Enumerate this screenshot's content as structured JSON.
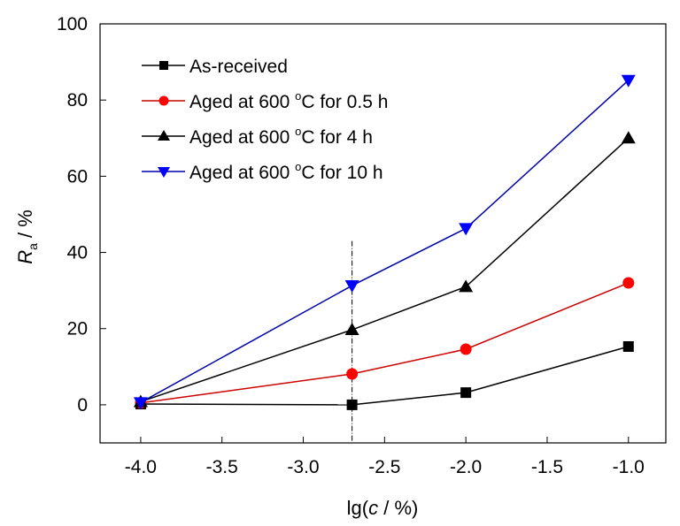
{
  "chart_data": {
    "type": "line",
    "title": "",
    "xlabel": {
      "prefix": "lg(",
      "italic": "c",
      "suffix": " / %)"
    },
    "ylabel": {
      "italic": "R",
      "subscript": "a",
      "suffix": " / %"
    },
    "xlim": [
      -4.25,
      -0.77
    ],
    "ylim": [
      -10,
      100
    ],
    "x_ticks": [
      -4.0,
      -3.5,
      -3.0,
      -2.5,
      -2.0,
      -1.5,
      -1.0
    ],
    "x_tick_labels": [
      "-4.0",
      "-3.5",
      "-3.0",
      "-2.5",
      "-2.0",
      "-1.5",
      "-1.0"
    ],
    "y_ticks": [
      0,
      20,
      40,
      60,
      80,
      100
    ],
    "y_tick_labels": [
      "0",
      "20",
      "40",
      "60",
      "80",
      "100"
    ],
    "grid": false,
    "legend_position": "top-left",
    "reference_line": {
      "x": -2.7,
      "style": "dash-dot",
      "y_range": [
        -10,
        43
      ]
    },
    "x": [
      -4.0,
      -2.7,
      -2.0,
      -1.0
    ],
    "series": [
      {
        "name": "As-received",
        "legend_parts": [
          "As-received"
        ],
        "marker": "square",
        "line_color": "#000000",
        "marker_color": "#000000",
        "values": [
          0.2,
          0,
          3.2,
          15.3
        ]
      },
      {
        "name": "Aged at 600 °C for 0.5 h",
        "legend_parts": [
          "Aged at 600 ",
          "o",
          "C for 0.5 h"
        ],
        "marker": "circle",
        "line_color": "#cc0000",
        "marker_color": "#ff0000",
        "values": [
          0.5,
          8.1,
          14.6,
          32.0
        ]
      },
      {
        "name": "Aged at 600 °C for 4 h",
        "legend_parts": [
          "Aged at 600 ",
          "o",
          "C for 4 h"
        ],
        "marker": "triangle-up",
        "line_color": "#000000",
        "marker_color": "#000000",
        "values": [
          0.8,
          19.7,
          31.0,
          70.0
        ]
      },
      {
        "name": "Aged at 600 °C for 10 h",
        "legend_parts": [
          "Aged at 600 ",
          "o",
          "C for 10 h"
        ],
        "marker": "triangle-down",
        "line_color": "#0000aa",
        "marker_color": "#0000ff",
        "values": [
          0.6,
          31.3,
          46.3,
          85.2
        ]
      }
    ]
  }
}
